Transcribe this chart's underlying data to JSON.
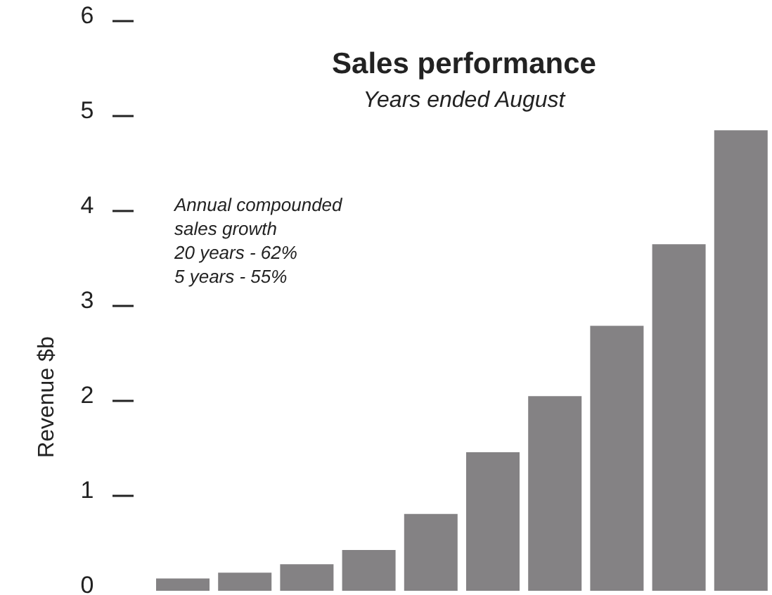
{
  "chart_data": {
    "type": "bar",
    "title": "Sales performance",
    "subtitle": "Years ended August",
    "ylabel": "Revenue $b",
    "annotations": [
      "Annual compounded\nsales growth\n20 years - 62%\n5 years - 55%"
    ],
    "categories": [
      null,
      null,
      null,
      null,
      null,
      null,
      null,
      null,
      null,
      null
    ],
    "values": [
      0.13,
      0.19,
      0.28,
      0.43,
      0.81,
      1.46,
      2.05,
      2.79,
      3.65,
      4.85
    ],
    "color": "#848284",
    "ylim": [
      0,
      6
    ],
    "yticks": [
      0,
      1,
      2,
      3,
      4,
      5,
      6
    ],
    "grid": false,
    "legend": false
  }
}
